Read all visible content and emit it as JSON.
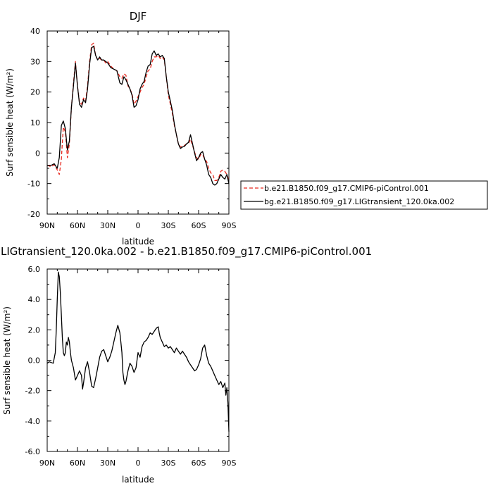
{
  "chart_data": [
    {
      "type": "line",
      "title": "DJF",
      "xlabel": "latitude",
      "ylabel": "Surf sensible heat  (W/m²)",
      "xlim": [
        90,
        -90
      ],
      "ylim": [
        -20,
        40
      ],
      "xticks": [
        90,
        60,
        30,
        0,
        -30,
        -60,
        -90
      ],
      "xtick_labels": [
        "90N",
        "60N",
        "30N",
        "0",
        "30S",
        "60S",
        "90S"
      ],
      "yticks": [
        -20,
        -10,
        0,
        10,
        20,
        30,
        40
      ],
      "ytick_labels": [
        "-20",
        "-10",
        "0",
        "10",
        "20",
        "30",
        "40"
      ],
      "legend_position": "right",
      "series": [
        {
          "name": "b.e21.B1850.f09_g17.CMIP6-piControl.001",
          "color": "#e8281e",
          "dash": "dashed",
          "x": [
            90,
            86,
            83,
            80,
            78,
            76,
            74,
            72,
            70,
            68,
            66,
            64,
            62,
            60,
            58,
            56,
            54,
            52,
            50,
            48,
            46,
            44,
            42,
            40,
            38,
            36,
            34,
            32,
            30,
            27,
            24,
            21,
            18,
            16,
            14,
            12,
            10,
            8,
            6,
            4,
            2,
            0,
            -2,
            -4,
            -6,
            -8,
            -10,
            -12,
            -14,
            -16,
            -18,
            -20,
            -22,
            -24,
            -26,
            -28,
            -30,
            -32,
            -34,
            -36,
            -38,
            -40,
            -42,
            -44,
            -46,
            -48,
            -50,
            -52,
            -54,
            -56,
            -58,
            -60,
            -62,
            -64,
            -66,
            -68,
            -70,
            -72,
            -74,
            -76,
            -78,
            -80,
            -82,
            -84,
            -86,
            -88,
            -90
          ],
          "y": [
            -4,
            -4.5,
            -3.8,
            -5.5,
            -7,
            -2,
            8.5,
            7,
            -1.5,
            3,
            15,
            23,
            30,
            22,
            16.5,
            16,
            18,
            17,
            22,
            30,
            35.5,
            36,
            32,
            30.5,
            31,
            30.5,
            30.5,
            29.5,
            30,
            28.5,
            27.5,
            27,
            25,
            24.5,
            26,
            25.5,
            22,
            21,
            19.5,
            16,
            17,
            18.5,
            20,
            21.5,
            22.5,
            25,
            27,
            27.5,
            30,
            31.5,
            31.5,
            32,
            31,
            31.5,
            30.5,
            25,
            19,
            16,
            13,
            9,
            6,
            3,
            2,
            2.2,
            2.5,
            3,
            3.2,
            4.5,
            2.5,
            0.3,
            -1.5,
            -2,
            -0.5,
            -0.5,
            -2,
            -2.8,
            -5,
            -6.5,
            -7,
            -9,
            -9,
            -8,
            -6,
            -5.5,
            -6,
            -7,
            -9
          ]
        },
        {
          "name": "bg.e21.B1850.f09_g17.LIGtransient_120.0ka.002",
          "color": "#000000",
          "dash": "solid",
          "x": [
            90,
            86,
            83,
            80,
            78,
            76,
            74,
            72,
            70,
            68,
            66,
            64,
            62,
            60,
            58,
            56,
            54,
            52,
            50,
            48,
            46,
            44,
            42,
            40,
            38,
            36,
            34,
            32,
            30,
            27,
            24,
            21,
            18,
            16,
            14,
            12,
            10,
            8,
            6,
            4,
            2,
            0,
            -2,
            -4,
            -6,
            -8,
            -10,
            -12,
            -14,
            -16,
            -18,
            -20,
            -22,
            -24,
            -26,
            -28,
            -30,
            -32,
            -34,
            -36,
            -38,
            -40,
            -42,
            -44,
            -46,
            -48,
            -50,
            -52,
            -54,
            -56,
            -58,
            -60,
            -62,
            -64,
            -66,
            -68,
            -70,
            -72,
            -74,
            -76,
            -78,
            -80,
            -82,
            -84,
            -86,
            -88,
            -90
          ],
          "y": [
            -4,
            -4,
            -3.5,
            -5,
            -1.5,
            9,
            10.5,
            8,
            1,
            4,
            15,
            22,
            29.5,
            22,
            16,
            15,
            17.5,
            16.5,
            21,
            29,
            34.5,
            35,
            32,
            30.5,
            31.5,
            30.5,
            30.5,
            30,
            29.5,
            28,
            27.5,
            27,
            23,
            22.5,
            25,
            24,
            22.5,
            21,
            19,
            15,
            15.5,
            17.5,
            21,
            22.5,
            23.5,
            26.5,
            28.5,
            29,
            32.5,
            33.5,
            32,
            32.5,
            31.5,
            32,
            31,
            25,
            20,
            17,
            14,
            9.5,
            6,
            3,
            1.5,
            2,
            2.2,
            3,
            3.5,
            6,
            3,
            0,
            -2.5,
            -1.5,
            0,
            0.5,
            -2,
            -4,
            -7,
            -8,
            -10,
            -10.5,
            -10,
            -8.5,
            -7,
            -8,
            -8.5,
            -7,
            -10
          ]
        }
      ]
    },
    {
      "type": "line",
      "title": "LIGtransient_120.0ka.002 - b.e21.B1850.f09_g17.CMIP6-piControl.001",
      "xlabel": "latitude",
      "ylabel": "Surf sensible heat  (W/m²)",
      "xlim": [
        90,
        -90
      ],
      "ylim": [
        -6,
        6
      ],
      "xticks": [
        90,
        60,
        30,
        0,
        -30,
        -60,
        -90
      ],
      "xtick_labels": [
        "90N",
        "60N",
        "30N",
        "0",
        "30S",
        "60S",
        "90S"
      ],
      "yticks": [
        -6,
        -4,
        -2,
        0,
        2,
        4,
        6
      ],
      "ytick_labels": [
        "-6.0",
        "-4.0",
        "-2.0",
        "0.0",
        "2.0",
        "4.0",
        "6.0"
      ],
      "series": [
        {
          "name": "",
          "color": "#000000",
          "dash": "solid",
          "x": [
            90,
            88,
            86,
            84,
            82,
            81,
            80,
            79,
            78,
            77,
            76,
            75,
            74,
            73,
            72,
            71,
            70,
            69,
            68,
            67,
            66,
            64,
            62,
            60,
            58,
            56,
            55,
            54,
            52,
            50,
            48,
            46,
            44,
            42,
            40,
            38,
            36,
            34,
            32,
            30,
            28,
            26,
            24,
            22,
            20,
            18,
            17,
            16,
            15,
            14,
            13,
            12,
            10,
            8,
            6,
            4,
            2,
            0,
            -2,
            -4,
            -6,
            -8,
            -10,
            -12,
            -14,
            -16,
            -18,
            -20,
            -21,
            -22,
            -24,
            -26,
            -28,
            -30,
            -32,
            -34,
            -36,
            -38,
            -40,
            -42,
            -44,
            -46,
            -48,
            -50,
            -52,
            -54,
            -56,
            -58,
            -60,
            -62,
            -64,
            -66,
            -68,
            -70,
            -72,
            -74,
            -76,
            -78,
            -80,
            -82,
            -84,
            -86,
            -87,
            -88,
            -89,
            -90
          ],
          "y": [
            -0.2,
            -0.1,
            -0.15,
            -0.2,
            0.5,
            2,
            4,
            5.8,
            5.5,
            4.5,
            3,
            1.5,
            0.5,
            0.3,
            0.5,
            1.2,
            1,
            1.5,
            1.2,
            0.5,
            0,
            -0.5,
            -1.3,
            -1,
            -0.7,
            -1,
            -1.9,
            -1.5,
            -0.5,
            -0.1,
            -0.8,
            -1.7,
            -1.8,
            -1.2,
            -0.5,
            0.2,
            0.6,
            0.7,
            0.3,
            -0.1,
            0.2,
            0.6,
            1.2,
            1.8,
            2.3,
            1.8,
            1.2,
            0.5,
            -0.8,
            -1.3,
            -1.6,
            -1.4,
            -0.7,
            -0.2,
            -0.4,
            -0.8,
            -0.5,
            0.5,
            0.2,
            0.9,
            1.2,
            1.3,
            1.5,
            1.8,
            1.7,
            1.9,
            2.1,
            2.2,
            1.8,
            1.5,
            1.2,
            0.9,
            1,
            0.8,
            0.9,
            0.7,
            0.5,
            0.8,
            0.6,
            0.4,
            0.6,
            0.4,
            0.2,
            -0.1,
            -0.3,
            -0.5,
            -0.7,
            -0.6,
            -0.3,
            0.1,
            0.8,
            1,
            0.3,
            -0.2,
            -0.4,
            -0.7,
            -1,
            -1.3,
            -1.6,
            -1.4,
            -1.8,
            -1.5,
            -2.3,
            -1.8,
            -2.8,
            -4.7
          ]
        }
      ]
    }
  ]
}
